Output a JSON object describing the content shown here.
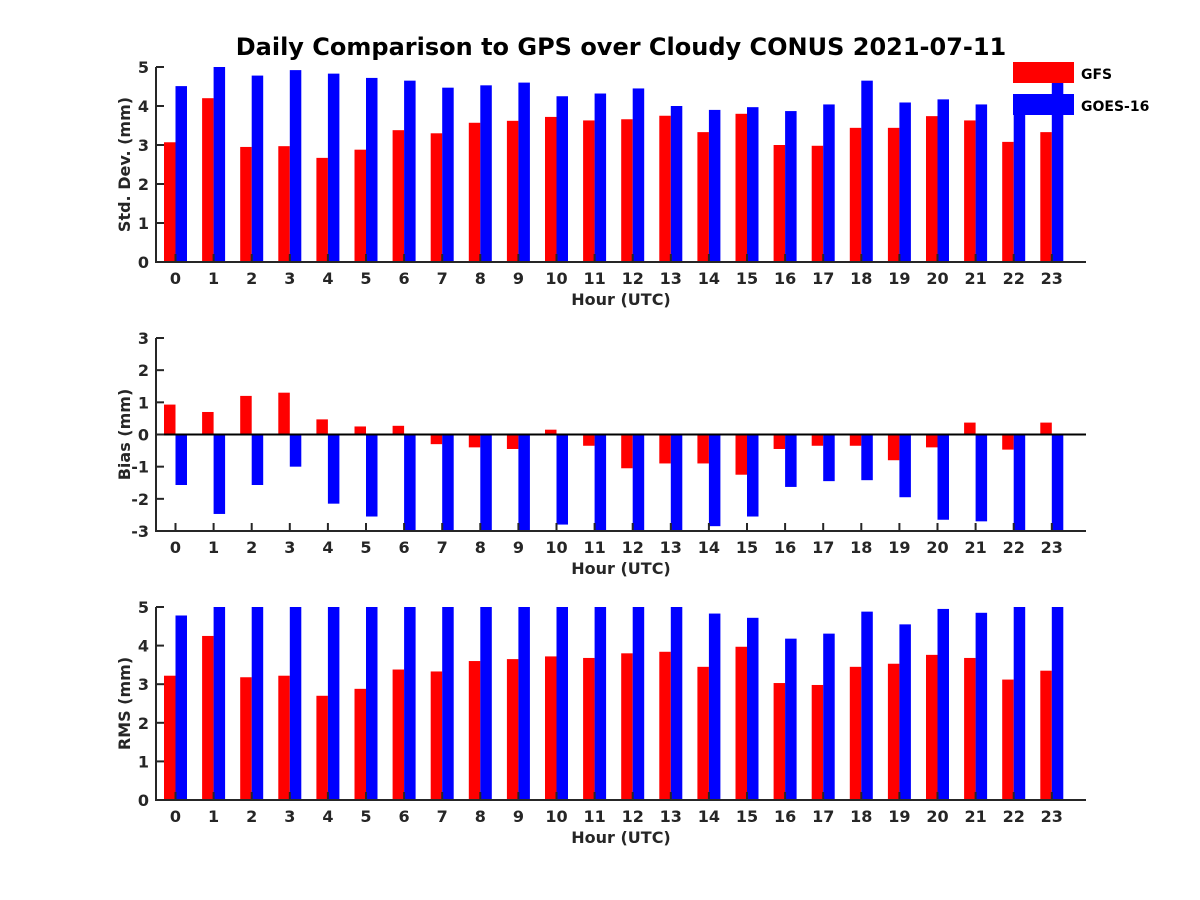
{
  "figure": {
    "title": "Daily Comparison to GPS over Cloudy CONUS 2021-07-11"
  },
  "legend": {
    "placement": "top-right",
    "entries": [
      {
        "name": "GFS",
        "color": "#ff0000"
      },
      {
        "name": "GOES-16",
        "color": "#0000ff"
      }
    ]
  },
  "chart_data": [
    {
      "type": "bar",
      "title": "",
      "xlabel": "Hour (UTC)",
      "ylabel": "Std. Dev. (mm)",
      "ylim": [
        0,
        5
      ],
      "yticks": [
        0,
        1,
        2,
        3,
        4,
        5
      ],
      "categories": [
        "0",
        "1",
        "2",
        "3",
        "4",
        "5",
        "6",
        "7",
        "8",
        "9",
        "10",
        "11",
        "12",
        "13",
        "14",
        "15",
        "16",
        "17",
        "18",
        "19",
        "20",
        "21",
        "22",
        "23"
      ],
      "series": [
        {
          "name": "GFS",
          "color": "#ff0000",
          "values": [
            3.07,
            4.2,
            2.95,
            2.97,
            2.67,
            2.88,
            3.38,
            3.3,
            3.57,
            3.62,
            3.72,
            3.63,
            3.66,
            3.75,
            3.33,
            3.8,
            3.0,
            2.98,
            3.44,
            3.44,
            3.74,
            3.63,
            3.08,
            3.33
          ]
        },
        {
          "name": "GOES-16",
          "color": "#0000ff",
          "values": [
            4.51,
            5.0,
            4.78,
            4.92,
            4.83,
            4.72,
            4.65,
            4.47,
            4.53,
            4.6,
            4.25,
            4.32,
            4.45,
            4.0,
            3.9,
            3.97,
            3.87,
            4.04,
            4.65,
            4.09,
            4.17,
            4.04,
            4.12,
            4.6
          ]
        }
      ]
    },
    {
      "type": "bar",
      "title": "",
      "xlabel": "Hour (UTC)",
      "ylabel": "Bias (mm)",
      "ylim": [
        -3,
        3
      ],
      "yticks": [
        -3,
        -2,
        -1,
        0,
        1,
        2,
        3
      ],
      "categories": [
        "0",
        "1",
        "2",
        "3",
        "4",
        "5",
        "6",
        "7",
        "8",
        "9",
        "10",
        "11",
        "12",
        "13",
        "14",
        "15",
        "16",
        "17",
        "18",
        "19",
        "20",
        "21",
        "22",
        "23"
      ],
      "series": [
        {
          "name": "GFS",
          "color": "#ff0000",
          "values": [
            0.93,
            0.7,
            1.2,
            1.3,
            0.47,
            0.25,
            0.27,
            -0.3,
            -0.4,
            -0.45,
            0.15,
            -0.35,
            -1.05,
            -0.9,
            -0.9,
            -1.25,
            -0.45,
            -0.35,
            -0.35,
            -0.8,
            -0.4,
            0.37,
            -0.47,
            0.37
          ]
        },
        {
          "name": "GOES-16",
          "color": "#0000ff",
          "values": [
            -1.57,
            -2.47,
            -1.57,
            -1.0,
            -2.15,
            -2.55,
            -3.0,
            -3.0,
            -3.0,
            -3.0,
            -2.8,
            -3.0,
            -3.0,
            -3.0,
            -2.85,
            -2.55,
            -1.63,
            -1.45,
            -1.42,
            -1.95,
            -2.65,
            -2.7,
            -3.0,
            -3.0
          ]
        }
      ]
    },
    {
      "type": "bar",
      "title": "",
      "xlabel": "Hour (UTC)",
      "ylabel": "RMS (mm)",
      "ylim": [
        0,
        5
      ],
      "yticks": [
        0,
        1,
        2,
        3,
        4,
        5
      ],
      "categories": [
        "0",
        "1",
        "2",
        "3",
        "4",
        "5",
        "6",
        "7",
        "8",
        "9",
        "10",
        "11",
        "12",
        "13",
        "14",
        "15",
        "16",
        "17",
        "18",
        "19",
        "20",
        "21",
        "22",
        "23"
      ],
      "series": [
        {
          "name": "GFS",
          "color": "#ff0000",
          "values": [
            3.22,
            4.25,
            3.18,
            3.22,
            2.7,
            2.88,
            3.38,
            3.33,
            3.6,
            3.65,
            3.72,
            3.68,
            3.8,
            3.84,
            3.45,
            3.97,
            3.03,
            2.98,
            3.45,
            3.53,
            3.76,
            3.68,
            3.12,
            3.35
          ]
        },
        {
          "name": "GOES-16",
          "color": "#0000ff",
          "values": [
            4.78,
            5.0,
            5.0,
            5.0,
            5.0,
            5.0,
            5.0,
            5.0,
            5.0,
            5.0,
            5.0,
            5.0,
            5.0,
            5.0,
            4.83,
            4.72,
            4.18,
            4.31,
            4.88,
            4.55,
            4.95,
            4.85,
            5.0,
            5.0
          ]
        }
      ]
    }
  ]
}
